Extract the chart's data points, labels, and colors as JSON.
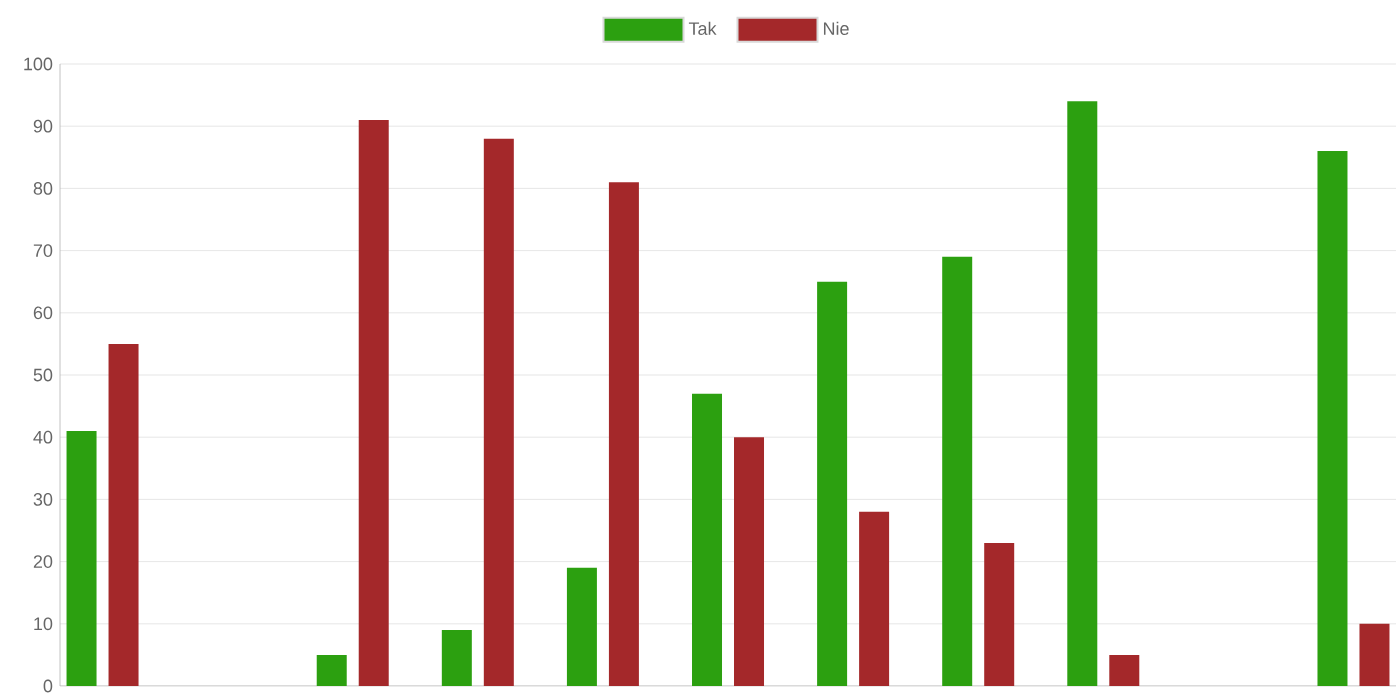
{
  "chart_data": {
    "type": "bar",
    "categories": [
      null,
      null,
      null,
      null,
      null,
      null,
      null,
      null,
      null,
      null,
      null
    ],
    "series": [
      {
        "name": "Tak",
        "color": "#2ca010",
        "values": [
          41,
          null,
          5,
          9,
          19,
          47,
          65,
          69,
          94,
          null,
          86
        ]
      },
      {
        "name": "Nie",
        "color": "#a4282a",
        "values": [
          55,
          null,
          91,
          88,
          81,
          40,
          28,
          23,
          5,
          null,
          10
        ]
      }
    ],
    "ylim": [
      0,
      100
    ],
    "yticks": [
      0,
      10,
      20,
      30,
      40,
      50,
      60,
      70,
      80,
      90,
      100
    ],
    "grid": "y",
    "legend": "top"
  }
}
